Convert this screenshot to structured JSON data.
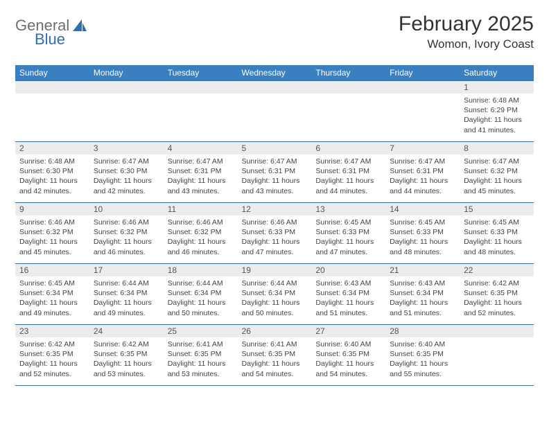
{
  "logo": {
    "text1": "General",
    "text2": "Blue"
  },
  "title": "February 2025",
  "location": "Womon, Ivory Coast",
  "colors": {
    "header_bg": "#3a80c0",
    "header_text": "#ffffff",
    "daynum_bg": "#ececec",
    "border": "#3a6fa0",
    "logo_gray": "#6a6f73",
    "logo_blue": "#2d6fb0"
  },
  "weekdays": [
    "Sunday",
    "Monday",
    "Tuesday",
    "Wednesday",
    "Thursday",
    "Friday",
    "Saturday"
  ],
  "weeks": [
    [
      {
        "n": "",
        "sr": "",
        "ss": "",
        "dl": ""
      },
      {
        "n": "",
        "sr": "",
        "ss": "",
        "dl": ""
      },
      {
        "n": "",
        "sr": "",
        "ss": "",
        "dl": ""
      },
      {
        "n": "",
        "sr": "",
        "ss": "",
        "dl": ""
      },
      {
        "n": "",
        "sr": "",
        "ss": "",
        "dl": ""
      },
      {
        "n": "",
        "sr": "",
        "ss": "",
        "dl": ""
      },
      {
        "n": "1",
        "sr": "Sunrise: 6:48 AM",
        "ss": "Sunset: 6:29 PM",
        "dl": "Daylight: 11 hours and 41 minutes."
      }
    ],
    [
      {
        "n": "2",
        "sr": "Sunrise: 6:48 AM",
        "ss": "Sunset: 6:30 PM",
        "dl": "Daylight: 11 hours and 42 minutes."
      },
      {
        "n": "3",
        "sr": "Sunrise: 6:47 AM",
        "ss": "Sunset: 6:30 PM",
        "dl": "Daylight: 11 hours and 42 minutes."
      },
      {
        "n": "4",
        "sr": "Sunrise: 6:47 AM",
        "ss": "Sunset: 6:31 PM",
        "dl": "Daylight: 11 hours and 43 minutes."
      },
      {
        "n": "5",
        "sr": "Sunrise: 6:47 AM",
        "ss": "Sunset: 6:31 PM",
        "dl": "Daylight: 11 hours and 43 minutes."
      },
      {
        "n": "6",
        "sr": "Sunrise: 6:47 AM",
        "ss": "Sunset: 6:31 PM",
        "dl": "Daylight: 11 hours and 44 minutes."
      },
      {
        "n": "7",
        "sr": "Sunrise: 6:47 AM",
        "ss": "Sunset: 6:31 PM",
        "dl": "Daylight: 11 hours and 44 minutes."
      },
      {
        "n": "8",
        "sr": "Sunrise: 6:47 AM",
        "ss": "Sunset: 6:32 PM",
        "dl": "Daylight: 11 hours and 45 minutes."
      }
    ],
    [
      {
        "n": "9",
        "sr": "Sunrise: 6:46 AM",
        "ss": "Sunset: 6:32 PM",
        "dl": "Daylight: 11 hours and 45 minutes."
      },
      {
        "n": "10",
        "sr": "Sunrise: 6:46 AM",
        "ss": "Sunset: 6:32 PM",
        "dl": "Daylight: 11 hours and 46 minutes."
      },
      {
        "n": "11",
        "sr": "Sunrise: 6:46 AM",
        "ss": "Sunset: 6:32 PM",
        "dl": "Daylight: 11 hours and 46 minutes."
      },
      {
        "n": "12",
        "sr": "Sunrise: 6:46 AM",
        "ss": "Sunset: 6:33 PM",
        "dl": "Daylight: 11 hours and 47 minutes."
      },
      {
        "n": "13",
        "sr": "Sunrise: 6:45 AM",
        "ss": "Sunset: 6:33 PM",
        "dl": "Daylight: 11 hours and 47 minutes."
      },
      {
        "n": "14",
        "sr": "Sunrise: 6:45 AM",
        "ss": "Sunset: 6:33 PM",
        "dl": "Daylight: 11 hours and 48 minutes."
      },
      {
        "n": "15",
        "sr": "Sunrise: 6:45 AM",
        "ss": "Sunset: 6:33 PM",
        "dl": "Daylight: 11 hours and 48 minutes."
      }
    ],
    [
      {
        "n": "16",
        "sr": "Sunrise: 6:45 AM",
        "ss": "Sunset: 6:34 PM",
        "dl": "Daylight: 11 hours and 49 minutes."
      },
      {
        "n": "17",
        "sr": "Sunrise: 6:44 AM",
        "ss": "Sunset: 6:34 PM",
        "dl": "Daylight: 11 hours and 49 minutes."
      },
      {
        "n": "18",
        "sr": "Sunrise: 6:44 AM",
        "ss": "Sunset: 6:34 PM",
        "dl": "Daylight: 11 hours and 50 minutes."
      },
      {
        "n": "19",
        "sr": "Sunrise: 6:44 AM",
        "ss": "Sunset: 6:34 PM",
        "dl": "Daylight: 11 hours and 50 minutes."
      },
      {
        "n": "20",
        "sr": "Sunrise: 6:43 AM",
        "ss": "Sunset: 6:34 PM",
        "dl": "Daylight: 11 hours and 51 minutes."
      },
      {
        "n": "21",
        "sr": "Sunrise: 6:43 AM",
        "ss": "Sunset: 6:34 PM",
        "dl": "Daylight: 11 hours and 51 minutes."
      },
      {
        "n": "22",
        "sr": "Sunrise: 6:42 AM",
        "ss": "Sunset: 6:35 PM",
        "dl": "Daylight: 11 hours and 52 minutes."
      }
    ],
    [
      {
        "n": "23",
        "sr": "Sunrise: 6:42 AM",
        "ss": "Sunset: 6:35 PM",
        "dl": "Daylight: 11 hours and 52 minutes."
      },
      {
        "n": "24",
        "sr": "Sunrise: 6:42 AM",
        "ss": "Sunset: 6:35 PM",
        "dl": "Daylight: 11 hours and 53 minutes."
      },
      {
        "n": "25",
        "sr": "Sunrise: 6:41 AM",
        "ss": "Sunset: 6:35 PM",
        "dl": "Daylight: 11 hours and 53 minutes."
      },
      {
        "n": "26",
        "sr": "Sunrise: 6:41 AM",
        "ss": "Sunset: 6:35 PM",
        "dl": "Daylight: 11 hours and 54 minutes."
      },
      {
        "n": "27",
        "sr": "Sunrise: 6:40 AM",
        "ss": "Sunset: 6:35 PM",
        "dl": "Daylight: 11 hours and 54 minutes."
      },
      {
        "n": "28",
        "sr": "Sunrise: 6:40 AM",
        "ss": "Sunset: 6:35 PM",
        "dl": "Daylight: 11 hours and 55 minutes."
      },
      {
        "n": "",
        "sr": "",
        "ss": "",
        "dl": ""
      }
    ]
  ]
}
